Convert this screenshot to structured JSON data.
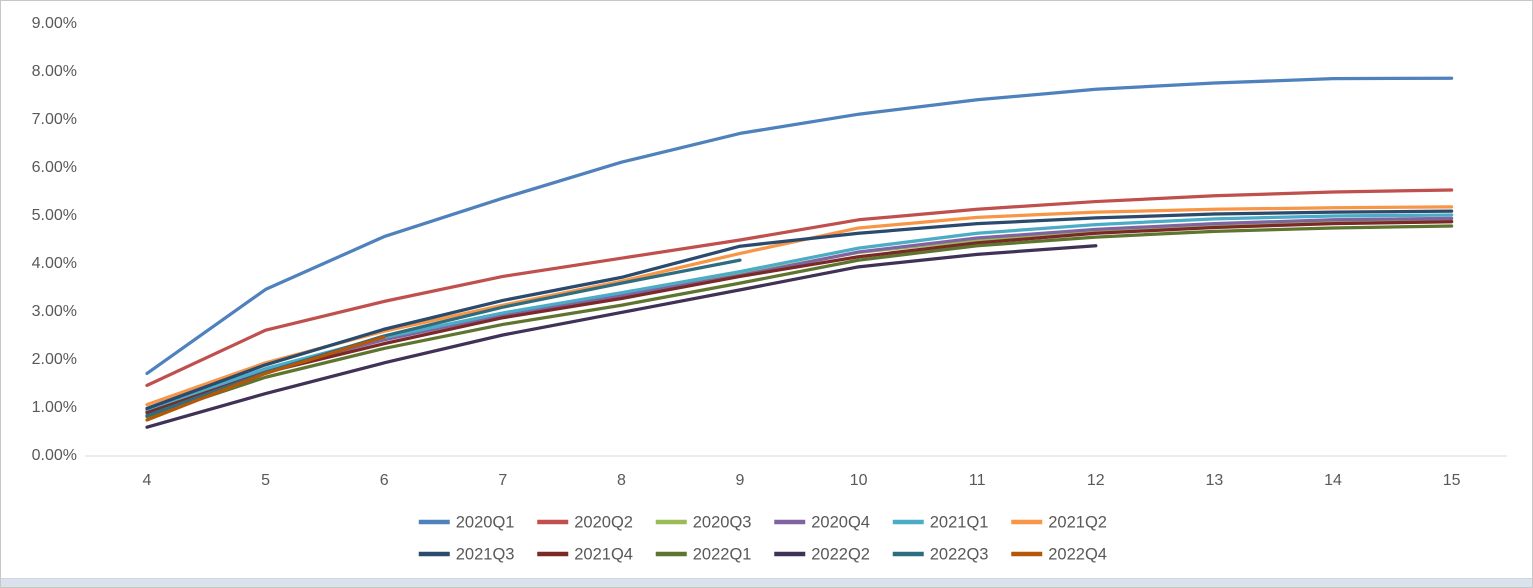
{
  "chart_data": {
    "type": "line",
    "title": "",
    "xlabel": "",
    "ylabel": "",
    "x_ticks": [
      4,
      5,
      6,
      7,
      8,
      9,
      10,
      11,
      12,
      13,
      14,
      15
    ],
    "y_tick_labels": [
      "0.00%",
      "1.00%",
      "2.00%",
      "3.00%",
      "4.00%",
      "5.00%",
      "6.00%",
      "7.00%",
      "8.00%",
      "9.00%"
    ],
    "xlim": [
      4,
      15
    ],
    "ylim": [
      0,
      9
    ],
    "y_unit": "percent",
    "grid": false,
    "legend_position": "bottom-two-rows",
    "legend_rows": [
      [
        "2020Q1",
        "2020Q2",
        "2020Q3",
        "2020Q4",
        "2021Q1",
        "2021Q2"
      ],
      [
        "2021Q3",
        "2021Q4",
        "2022Q1",
        "2022Q2",
        "2022Q3",
        "2022Q4"
      ]
    ],
    "series": [
      {
        "name": "2020Q1",
        "color": "#4F81BD",
        "x_start": 4,
        "values": [
          1.7,
          3.45,
          4.55,
          5.35,
          6.1,
          6.7,
          7.1,
          7.4,
          7.62,
          7.75,
          7.84,
          7.85
        ]
      },
      {
        "name": "2020Q2",
        "color": "#C0504D",
        "x_start": 4,
        "values": [
          1.45,
          2.6,
          3.2,
          3.72,
          4.1,
          4.48,
          4.9,
          5.12,
          5.28,
          5.4,
          5.48,
          5.52
        ]
      },
      {
        "name": "2020Q3",
        "color": "#9BBB59",
        "x_start": 4,
        "values": [
          0.93,
          1.78,
          2.42,
          2.93,
          3.34,
          3.76,
          4.22,
          4.48,
          4.65,
          4.76,
          4.84,
          4.88
        ]
      },
      {
        "name": "2020Q4",
        "color": "#8064A2",
        "x_start": 4,
        "values": [
          0.9,
          1.76,
          2.4,
          2.92,
          3.32,
          3.74,
          4.23,
          4.52,
          4.7,
          4.82,
          4.9,
          4.93
        ]
      },
      {
        "name": "2021Q1",
        "color": "#4BACC6",
        "x_start": 4,
        "values": [
          0.95,
          1.8,
          2.45,
          2.96,
          3.38,
          3.82,
          4.31,
          4.62,
          4.8,
          4.92,
          4.98,
          5.0
        ]
      },
      {
        "name": "2021Q2",
        "color": "#F79646",
        "x_start": 4,
        "values": [
          1.05,
          1.92,
          2.58,
          3.12,
          3.62,
          4.2,
          4.73,
          4.95,
          5.06,
          5.12,
          5.15,
          5.17
        ]
      },
      {
        "name": "2021Q3",
        "color": "#2A4A6E",
        "x_start": 4,
        "values": [
          0.97,
          1.88,
          2.62,
          3.22,
          3.7,
          4.35,
          4.62,
          4.82,
          4.94,
          5.02,
          5.06,
          5.08
        ]
      },
      {
        "name": "2021Q4",
        "color": "#7B2927",
        "x_start": 4,
        "values": [
          0.88,
          1.72,
          2.32,
          2.86,
          3.26,
          3.72,
          4.13,
          4.42,
          4.62,
          4.74,
          4.82,
          4.86
        ]
      },
      {
        "name": "2022Q1",
        "color": "#5E7530",
        "x_start": 4,
        "values": [
          0.8,
          1.62,
          2.22,
          2.72,
          3.12,
          3.58,
          4.06,
          4.36,
          4.54,
          4.66,
          4.73,
          4.77
        ]
      },
      {
        "name": "2022Q2",
        "color": "#403156",
        "x_start": 4,
        "values": [
          0.58,
          1.28,
          1.92,
          2.5,
          2.97,
          3.44,
          3.92,
          4.18,
          4.36
        ]
      },
      {
        "name": "2022Q3",
        "color": "#2E6C80",
        "x_start": 4,
        "values": [
          0.82,
          1.72,
          2.48,
          3.08,
          3.58,
          4.06
        ]
      },
      {
        "name": "2022Q4",
        "color": "#B65708",
        "x_start": 4,
        "values": [
          0.73,
          1.7,
          2.46
        ]
      }
    ]
  },
  "frame": {
    "background": "#FFFFFF",
    "border_color": "#C9C7C5",
    "bottom_strip_color": "#DAE2ED",
    "axis_line_color": "#D9D9D9",
    "label_color": "#595959"
  }
}
